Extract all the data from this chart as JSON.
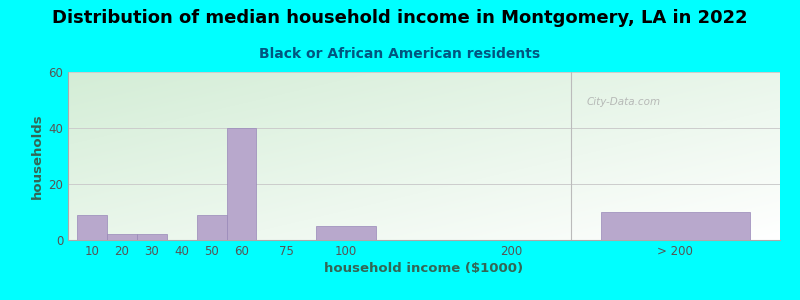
{
  "title": "Distribution of median household income in Montgomery, LA in 2022",
  "subtitle": "Black or African American residents",
  "xlabel": "household income ($1000)",
  "ylabel": "households",
  "background_color": "#00FFFF",
  "bar_color": "#b8a8cc",
  "bar_edge_color": "#9888b8",
  "ylim": [
    0,
    60
  ],
  "yticks": [
    0,
    20,
    40,
    60
  ],
  "categories": [
    "10",
    "20",
    "30",
    "40",
    "50",
    "60",
    "75",
    "100",
    "200",
    "> 200"
  ],
  "values": [
    9,
    2,
    2,
    0,
    9,
    40,
    0,
    5,
    0,
    10
  ],
  "x_positions": [
    0,
    1,
    2,
    3,
    4,
    5,
    6.5,
    8.0,
    14.0,
    17.5
  ],
  "bar_widths": [
    1,
    1,
    1,
    1,
    1,
    1,
    1.0,
    2.0,
    1.0,
    5.0
  ],
  "xlim": [
    -0.3,
    23.5
  ],
  "title_fontsize": 13,
  "subtitle_fontsize": 10,
  "tick_fontsize": 8.5,
  "axis_label_fontsize": 9.5,
  "watermark_text": "City-Data.com",
  "separator_x": 16.5
}
